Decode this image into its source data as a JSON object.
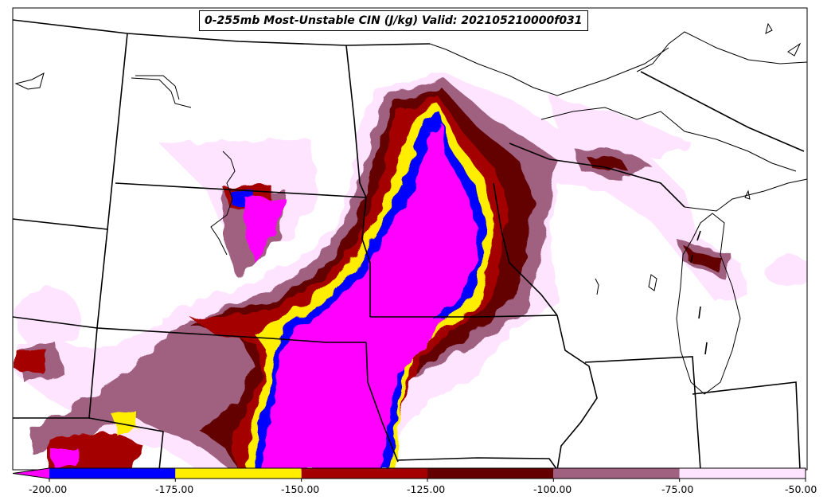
{
  "map": {
    "title": "0-255mb Most-Unstable CIN (J/kg) Valid: 202105210000f031",
    "field": "CIN (J/kg)",
    "region": "North-central United States / Upper Midwest"
  },
  "colorbar": {
    "orientation": "horizontal",
    "extend": "min",
    "levels": [
      {
        "label": "-200.00",
        "value": -200
      },
      {
        "label": "-175.00",
        "value": -175
      },
      {
        "label": "-150.00",
        "value": -150
      },
      {
        "label": "-125.00",
        "value": -125
      },
      {
        "label": "-100.00",
        "value": -100
      },
      {
        "label": "-75.00",
        "value": -75
      },
      {
        "label": "-50.00",
        "value": -50
      }
    ],
    "bins": [
      {
        "range": "< -200",
        "color": "#ff00ff"
      },
      {
        "range": "-200 to -175",
        "color": "#0000ff"
      },
      {
        "range": "-175 to -150",
        "color": "#ffee00"
      },
      {
        "range": "-150 to -125",
        "color": "#a50000"
      },
      {
        "range": "-125 to -100",
        "color": "#640000"
      },
      {
        "range": "-100 to -75",
        "color": "#a06080"
      },
      {
        "range": "-75 to -50",
        "color": "#ffe4ff"
      }
    ]
  }
}
